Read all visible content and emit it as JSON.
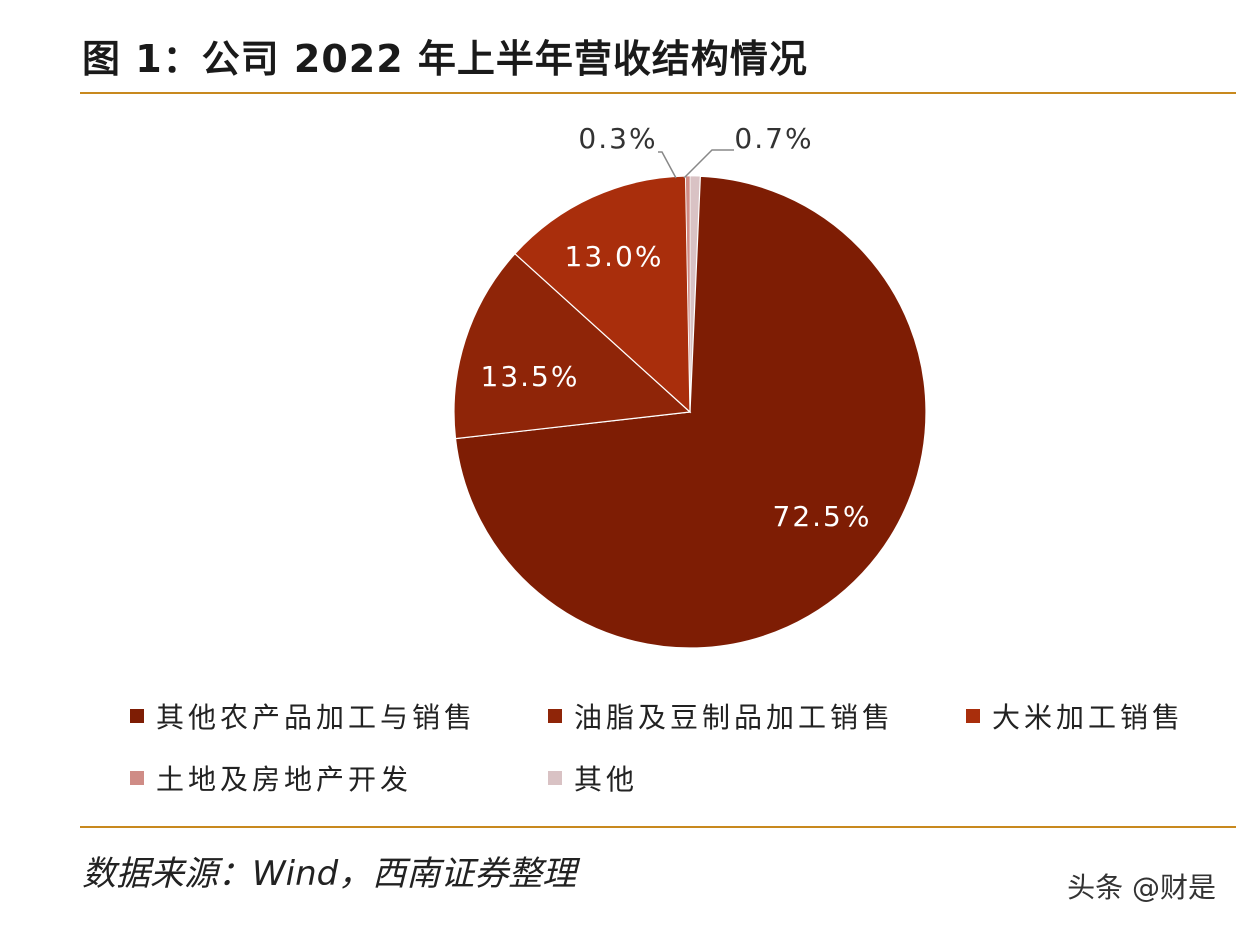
{
  "title": "图 1：公司 2022 年上半年营收结构情况",
  "source": "数据来源：Wind，西南证券整理",
  "watermark": "头条 @财是",
  "chart_data": {
    "type": "pie",
    "title": "图 1：公司 2022 年上半年营收结构情况",
    "legend_position": "bottom",
    "slices": [
      {
        "label": "其他农产品加工与销售",
        "value": 72.5,
        "display": "72.5%",
        "color": "#7e1d04"
      },
      {
        "label": "油脂及豆制品加工销售",
        "value": 13.5,
        "display": "13.5%",
        "color": "#8f2508"
      },
      {
        "label": "大米加工销售",
        "value": 13.0,
        "display": "13.0%",
        "color": "#a92e0c"
      },
      {
        "label": "土地及房地产开发",
        "value": 0.3,
        "display": "0.3%",
        "color": "#cf8c86"
      },
      {
        "label": "其他",
        "value": 0.7,
        "display": "0.7%",
        "color": "#d9c2c4"
      }
    ]
  }
}
